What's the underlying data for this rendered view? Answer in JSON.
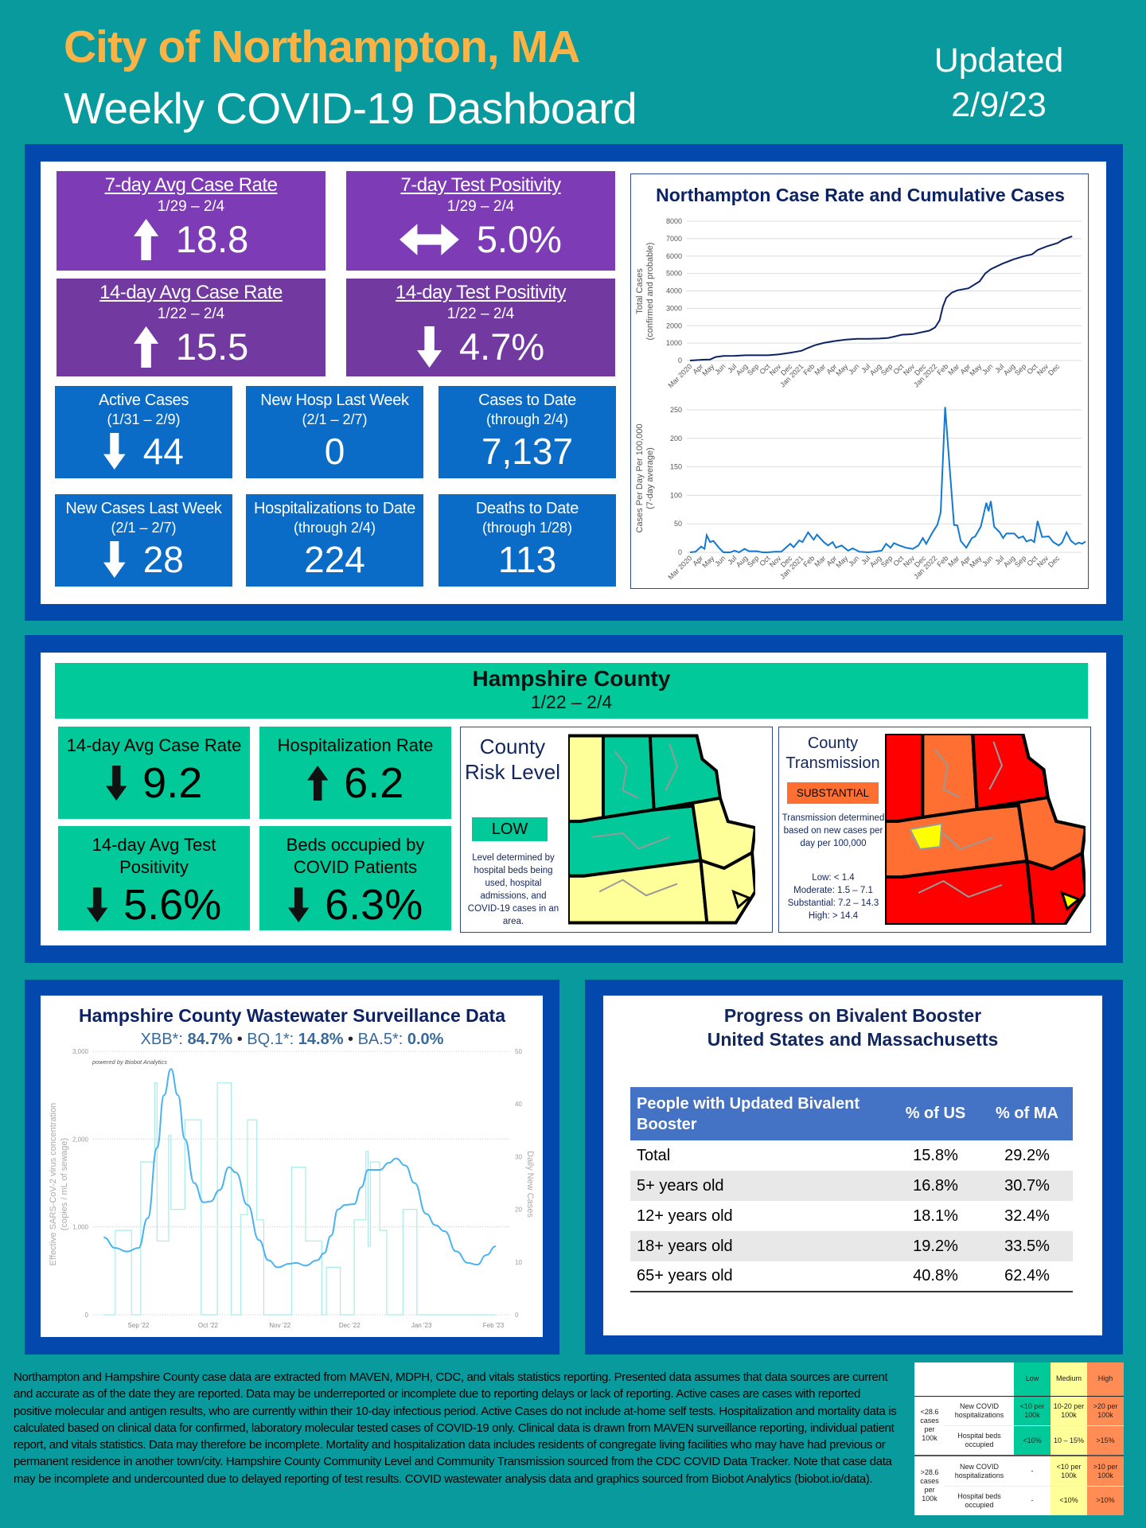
{
  "header": {
    "title": "City of Northampton, MA",
    "subtitle": "Weekly COVID-19 Dashboard",
    "updated_label": "Updated",
    "updated_date": "2/9/23"
  },
  "city_tiles": [
    {
      "title": "7-day Avg Case Rate",
      "date": "1/29 – 2/4",
      "trend": "up",
      "value": "18.8"
    },
    {
      "title": "7-day Test Positivity",
      "date": "1/29 – 2/4",
      "trend": "flat",
      "value": "5.0%"
    },
    {
      "title": "14-day Avg Case Rate",
      "date": "1/22 – 2/4",
      "trend": "up",
      "value": "15.5"
    },
    {
      "title": "14-day Test Positivity",
      "date": "1/22 – 2/4",
      "trend": "down",
      "value": "4.7%"
    }
  ],
  "count_tiles": [
    {
      "title": "Active Cases",
      "date": "(1/31 – 2/9)",
      "trend": "down",
      "value": "44"
    },
    {
      "title": "New Hosp Last Week",
      "date": "(2/1 – 2/7)",
      "value": "0"
    },
    {
      "title": "Cases to Date",
      "date": "(through 2/4)",
      "value": "7,137"
    },
    {
      "title": "New Cases Last Week",
      "date": "(2/1 – 2/7)",
      "trend": "down",
      "value": "28"
    },
    {
      "title": "Hospitalizations to Date",
      "date": "(through 2/4)",
      "value": "224"
    },
    {
      "title": "Deaths to Date",
      "date": "(through 1/28)",
      "value": "113"
    }
  ],
  "colors": {
    "orange_title": "#fbb346",
    "purple": "#7d3bb5",
    "purple_dark": "#7239a1",
    "tile_blue": "#0a6cc6",
    "panel_blue": "#0349ad",
    "green": "#02c99a",
    "teal_bg": "#099a9d"
  },
  "county": {
    "name": "Hampshire County",
    "date": "1/22 – 2/4",
    "tiles": [
      {
        "title": "14-day Avg Case Rate",
        "trend": "down",
        "value": "9.2"
      },
      {
        "title": "Hospitalization Rate",
        "trend": "up",
        "value": "6.2"
      },
      {
        "title": "14-day Avg Test Positivity",
        "trend": "down",
        "value": "5.6%"
      },
      {
        "title": "Beds occupied by COVID Patients",
        "trend": "down",
        "value": "6.3%"
      }
    ],
    "risk": {
      "title": "County Risk Level",
      "badge": "LOW",
      "badge_color": "#02c99a",
      "note": "Level determined by hospital beds being used, hospital admissions, and COVID-19 cases in an area.",
      "region_colors": [
        "#ffff99",
        "#02c99a",
        "#02c99a",
        "#02c99a",
        "#ffff99",
        "#ffff99",
        "#ffff99"
      ]
    },
    "transmission": {
      "title": "County Transmission",
      "badge": "SUBSTANTIAL",
      "badge_color": "#ff6f31",
      "note": "Transmission determined based on new cases per day per 100,000",
      "scale": [
        "Low: < 1.4",
        "Moderate: 1.5 – 7.1",
        "Substantial: 7.2 – 14.3",
        "High: > 14.4"
      ],
      "region_colors": [
        "#ff0000",
        "#ff6f31",
        "#ff0000",
        "#ff6f31",
        "#ff6f31",
        "#ff0000",
        "#ff0000"
      ]
    }
  },
  "booster": {
    "title1": "Progress on Bivalent Booster",
    "title2": "United States and Massachusetts",
    "headers": [
      "People with Updated Bivalent Booster",
      "% of US",
      "% of MA"
    ],
    "rows": [
      [
        "Total",
        "15.8%",
        "29.2%"
      ],
      [
        "5+ years old",
        "16.8%",
        "30.7%"
      ],
      [
        "12+ years old",
        "18.1%",
        "32.4%"
      ],
      [
        "18+ years old",
        "19.2%",
        "33.5%"
      ],
      [
        "65+ years old",
        "40.8%",
        "62.4%"
      ]
    ]
  },
  "footnote": "Northampton and Hampshire County case data are extracted from MAVEN, MDPH, CDC, and vitals statistics reporting. Presented data assumes that data sources are current and accurate as of the date they are reported. Data may be underreported or incomplete due to reporting delays or lack of reporting. Active cases are cases with reported positive molecular and antigen results, who are currently within their 10-day infectious period. Active Cases do not include at-home self tests. Hospitalization and mortality data is calculated based on clinical data for confirmed, laboratory molecular tested cases of COVID-19 only. Clinical data is drawn from MAVEN surveillance reporting, individual patient report, and vitals statistics. Data may therefore be incomplete. Mortality and hospitalization data includes residents of congregate living facilities who may have had previous or permanent residence in another town/city. Hampshire County Community Level and Community Transmission sourced from the CDC COVID Data Tracker. Note that case data may be incomplete and undercounted due to delayed reporting of test results. COVID wastewater analysis data and graphics sourced from Biobot Analytics (biobot.io/data).",
  "legend": {
    "levels": [
      "Low",
      "Medium",
      "High"
    ],
    "level_colors": [
      "#02c99a",
      "#ffff99",
      "#ff8c55"
    ],
    "groups": [
      {
        "label": "<28.6 cases per 100k",
        "rows": [
          [
            "New COVID hospitalizations",
            "<10 per 100k",
            "10-20 per 100k",
            ">20 per 100k"
          ],
          [
            "Hospital beds occupied",
            "<10%",
            "10 – 15%",
            ">15%"
          ]
        ]
      },
      {
        "label": ">28.6 cases per 100k",
        "rows": [
          [
            "New COVID hospitalizations",
            "-",
            "<10 per 100k",
            ">10 per 100k"
          ],
          [
            "Hospital beds occupied",
            "-",
            "<10%",
            ">10%"
          ]
        ]
      }
    ]
  },
  "chart_data": [
    {
      "type": "line",
      "title": "Northampton Case Rate and Cumulative Cases",
      "ylabel": "Total Cases",
      "ylabel2": "(confirmed and probable)",
      "ylim": [
        0,
        8000
      ],
      "yticks": [
        0,
        1000,
        2000,
        3000,
        4000,
        5000,
        6000,
        7000,
        8000
      ],
      "x_labels": [
        "Mar 2020",
        "Apr",
        "May",
        "Jun",
        "Jul",
        "Aug",
        "Sep",
        "Oct",
        "Nov",
        "Dec",
        "Jan 2021",
        "Feb",
        "Mar",
        "Apr",
        "May",
        "Jun",
        "Jul",
        "Aug",
        "Sep",
        "Oct",
        "Nov",
        "Dec",
        "Jan 2022",
        "Feb",
        "Mar",
        "Apr",
        "May",
        "Jun",
        "Jul",
        "Aug",
        "Sep",
        "Oct",
        "Nov",
        "Dec"
      ],
      "x_unit": "months since Mar 2020",
      "points": [
        [
          0,
          0
        ],
        [
          1,
          40
        ],
        [
          1.8,
          60
        ],
        [
          2.3,
          200
        ],
        [
          3,
          260
        ],
        [
          4,
          270
        ],
        [
          5,
          300
        ],
        [
          6,
          300
        ],
        [
          7,
          300
        ],
        [
          8,
          350
        ],
        [
          9,
          450
        ],
        [
          10,
          560
        ],
        [
          10.5,
          700
        ],
        [
          11.2,
          880
        ],
        [
          12,
          1010
        ],
        [
          13,
          1120
        ],
        [
          14,
          1200
        ],
        [
          15,
          1250
        ],
        [
          16,
          1250
        ],
        [
          17,
          1260
        ],
        [
          17.8,
          1300
        ],
        [
          18.5,
          1400
        ],
        [
          19,
          1480
        ],
        [
          20,
          1520
        ],
        [
          21,
          1650
        ],
        [
          21.5,
          1720
        ],
        [
          22,
          1900
        ],
        [
          22.4,
          2300
        ],
        [
          22.7,
          3100
        ],
        [
          23,
          3600
        ],
        [
          23.5,
          3900
        ],
        [
          24,
          4030
        ],
        [
          25,
          4150
        ],
        [
          26,
          4550
        ],
        [
          26.5,
          5000
        ],
        [
          27,
          5250
        ],
        [
          28,
          5550
        ],
        [
          29,
          5800
        ],
        [
          30,
          6000
        ],
        [
          30.7,
          6100
        ],
        [
          31.2,
          6350
        ],
        [
          32,
          6550
        ],
        [
          33,
          6750
        ],
        [
          33.5,
          6950
        ],
        [
          34.3,
          7137
        ]
      ]
    },
    {
      "type": "line",
      "ylabel": "Cases Per Day Per 100,000",
      "ylabel2": "(7-day average)",
      "ylim": [
        0,
        250
      ],
      "yticks": [
        0,
        50,
        100,
        150,
        200,
        250
      ],
      "points": [
        [
          0,
          0
        ],
        [
          0.5,
          1
        ],
        [
          1,
          10
        ],
        [
          1.3,
          6
        ],
        [
          1.5,
          30
        ],
        [
          1.8,
          18
        ],
        [
          2.1,
          20
        ],
        [
          2.6,
          8
        ],
        [
          3,
          0
        ],
        [
          3.6,
          0
        ],
        [
          4,
          3
        ],
        [
          4.4,
          0
        ],
        [
          4.9,
          6
        ],
        [
          5.3,
          2
        ],
        [
          6,
          2
        ],
        [
          6.5,
          0
        ],
        [
          7,
          0
        ],
        [
          7.6,
          1
        ],
        [
          8.2,
          1
        ],
        [
          8.6,
          8
        ],
        [
          9,
          15
        ],
        [
          9.3,
          9
        ],
        [
          9.8,
          21
        ],
        [
          10.1,
          18
        ],
        [
          10.6,
          35
        ],
        [
          11.1,
          22
        ],
        [
          11.4,
          31
        ],
        [
          12,
          18
        ],
        [
          12.4,
          12
        ],
        [
          12.8,
          18
        ],
        [
          13.1,
          8
        ],
        [
          13.6,
          12
        ],
        [
          14.2,
          3
        ],
        [
          14.6,
          7
        ],
        [
          15.2,
          1
        ],
        [
          16,
          0
        ],
        [
          16.5,
          1
        ],
        [
          17.2,
          3
        ],
        [
          17.6,
          15
        ],
        [
          18,
          8
        ],
        [
          18.3,
          16
        ],
        [
          18.8,
          12
        ],
        [
          19.4,
          8
        ],
        [
          20,
          6
        ],
        [
          20.5,
          12
        ],
        [
          20.9,
          25
        ],
        [
          21.2,
          15
        ],
        [
          21.8,
          36
        ],
        [
          22.2,
          48
        ],
        [
          22.5,
          70
        ],
        [
          22.9,
          255
        ],
        [
          23.3,
          150
        ],
        [
          23.7,
          48
        ],
        [
          24,
          47
        ],
        [
          24.3,
          20
        ],
        [
          24.8,
          8
        ],
        [
          25.3,
          25
        ],
        [
          25.6,
          28
        ],
        [
          26.1,
          45
        ],
        [
          26.6,
          87
        ],
        [
          26.8,
          72
        ],
        [
          27,
          90
        ],
        [
          27.3,
          45
        ],
        [
          27.8,
          35
        ],
        [
          28.1,
          25
        ],
        [
          28.4,
          33
        ],
        [
          29.1,
          33
        ],
        [
          29.5,
          25
        ],
        [
          29.9,
          28
        ],
        [
          30.2,
          19
        ],
        [
          30.6,
          22
        ],
        [
          30.9,
          18
        ],
        [
          31.2,
          55
        ],
        [
          31.6,
          27
        ],
        [
          32.2,
          28
        ],
        [
          32.6,
          18
        ],
        [
          33.1,
          12
        ],
        [
          33.4,
          17
        ],
        [
          33.8,
          35
        ],
        [
          34.2,
          20
        ],
        [
          34.6,
          14
        ],
        [
          34.9,
          17
        ],
        [
          35.2,
          15
        ],
        [
          35.5,
          19
        ]
      ]
    },
    {
      "type": "line",
      "title": "Hampshire County Wastewater Surveillance Data",
      "variants": [
        {
          "name": "XBB*",
          "value": "84.7%"
        },
        {
          "name": "BQ.1*",
          "value": "14.8%"
        },
        {
          "name": "BA.5*",
          "value": "0.0%"
        }
      ],
      "credit": "powered by Biobot Analytics",
      "ylabel": "Effective SARS-CoV-2 virus concentration",
      "ylabel2": "(copies / mL of sewage)",
      "y2label": "Daily New Cases",
      "ylim": [
        0,
        3000
      ],
      "yticks": [
        "0",
        "1,000",
        "2,000",
        "3,000"
      ],
      "y2lim": [
        0,
        50
      ],
      "y2ticks": [
        "0",
        "10",
        "20",
        "30",
        "40",
        "50"
      ],
      "x_labels": [
        "Sep '22",
        "Oct '22",
        "Nov '22",
        "Dec '22",
        "Jan '23",
        "Feb '23"
      ],
      "x_label_days": [
        0,
        30,
        61,
        91,
        122,
        153
      ],
      "x_unit": "days since Sep 1 2022",
      "concentration": [
        [
          -15,
          880
        ],
        [
          -10,
          760
        ],
        [
          -5,
          720
        ],
        [
          0,
          760
        ],
        [
          4,
          1100
        ],
        [
          8,
          1900
        ],
        [
          11,
          2500
        ],
        [
          14,
          2800
        ],
        [
          17,
          2500
        ],
        [
          20,
          2000
        ],
        [
          24,
          1500
        ],
        [
          28,
          1280
        ],
        [
          31,
          1290
        ],
        [
          35,
          1420
        ],
        [
          39,
          1680
        ],
        [
          42,
          1620
        ],
        [
          47,
          1250
        ],
        [
          52,
          850
        ],
        [
          56,
          620
        ],
        [
          60,
          540
        ],
        [
          65,
          580
        ],
        [
          68,
          590
        ],
        [
          72,
          560
        ],
        [
          77,
          620
        ],
        [
          80,
          700
        ],
        [
          83,
          900
        ],
        [
          86,
          1200
        ],
        [
          89,
          1250
        ],
        [
          93,
          1260
        ],
        [
          96,
          1450
        ],
        [
          99,
          1650
        ],
        [
          104,
          1650
        ],
        [
          108,
          1730
        ],
        [
          111,
          1780
        ],
        [
          115,
          1700
        ],
        [
          119,
          1500
        ],
        [
          124,
          1150
        ],
        [
          128,
          1020
        ],
        [
          132,
          950
        ],
        [
          137,
          720
        ],
        [
          142,
          590
        ],
        [
          146,
          570
        ],
        [
          150,
          680
        ],
        [
          154,
          780
        ]
      ],
      "daily_cases_steps": [
        [
          -15,
          -10,
          0
        ],
        [
          -10,
          -3,
          16
        ],
        [
          -3,
          1,
          0
        ],
        [
          1,
          7,
          29
        ],
        [
          7,
          8,
          44
        ],
        [
          8,
          13,
          14
        ],
        [
          13,
          14,
          34
        ],
        [
          14,
          20,
          20
        ],
        [
          20,
          27,
          37
        ],
        [
          27,
          34,
          0
        ],
        [
          34,
          40,
          44
        ],
        [
          40,
          44,
          0
        ],
        [
          44,
          47,
          19
        ],
        [
          47,
          51,
          37
        ],
        [
          51,
          54,
          18
        ],
        [
          54,
          66,
          0
        ],
        [
          66,
          72,
          28
        ],
        [
          72,
          79,
          14
        ],
        [
          79,
          81,
          0
        ],
        [
          81,
          87,
          9
        ],
        [
          87,
          93,
          0
        ],
        [
          93,
          98,
          18
        ],
        [
          98,
          99,
          31
        ],
        [
          99,
          100,
          13
        ],
        [
          100,
          104,
          29
        ],
        [
          104,
          107,
          16
        ],
        [
          107,
          114,
          0
        ],
        [
          114,
          120,
          20
        ],
        [
          120,
          154,
          0
        ]
      ]
    }
  ]
}
